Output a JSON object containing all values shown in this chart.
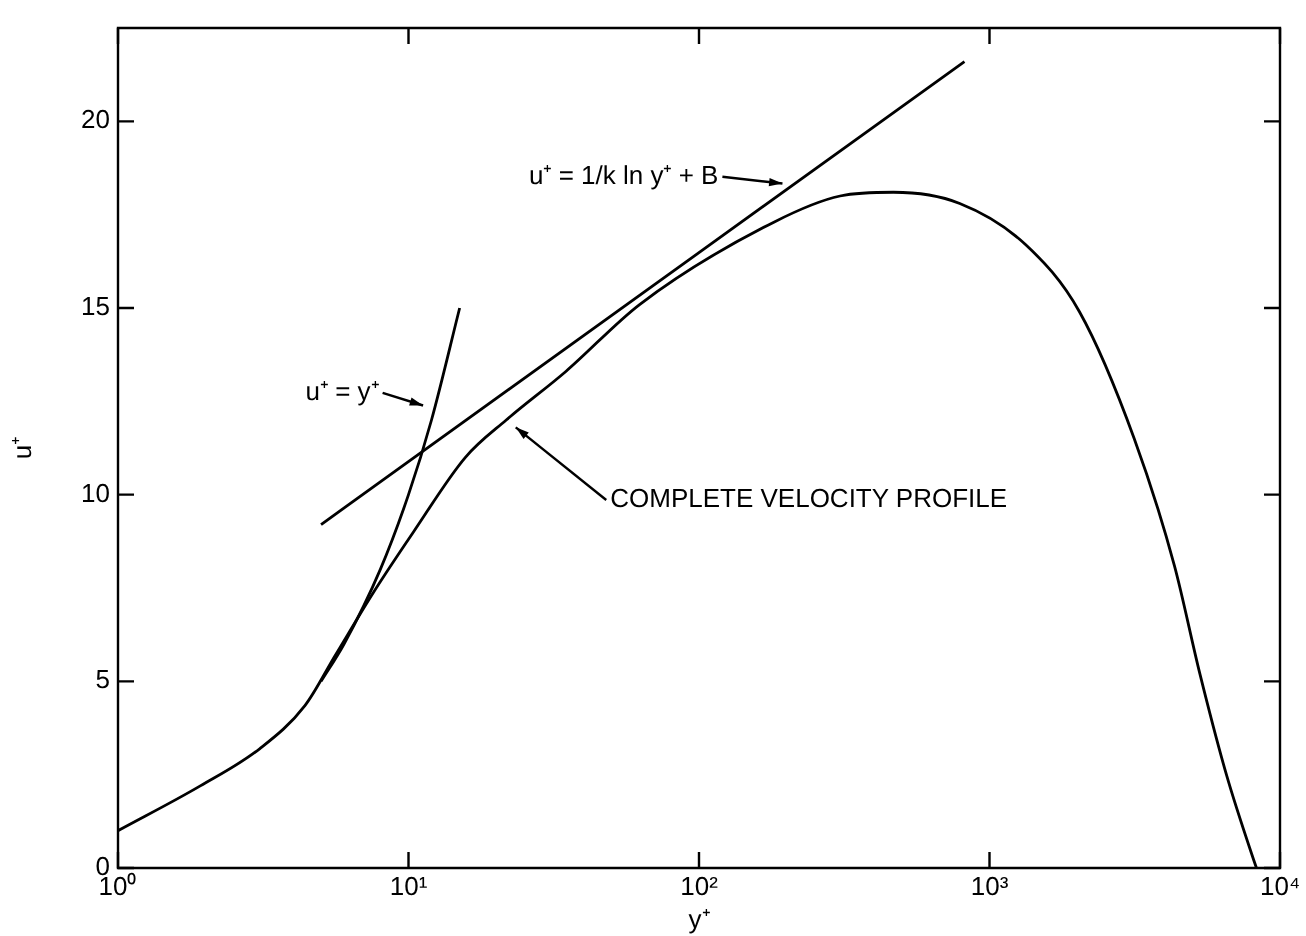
{
  "chart_data": {
    "type": "line",
    "xlabel": "y⁺",
    "ylabel": "u⁺",
    "log": "x",
    "grid": false,
    "legend": false,
    "marker": "none",
    "line_style": "solid",
    "xlim": [
      1,
      10000
    ],
    "xticks": [
      {
        "value": 1,
        "label": "10⁰"
      },
      {
        "value": 10,
        "label": "10¹"
      },
      {
        "value": 100,
        "label": "10²"
      },
      {
        "value": 1000,
        "label": "10³"
      },
      {
        "value": 10000,
        "label": "10⁴"
      }
    ],
    "ylim": [
      0,
      22.5
    ],
    "yticks": [
      0,
      5,
      10,
      15,
      20
    ],
    "series": [
      {
        "color": "#000000",
        "x": [
          1,
          1.92,
          3.08,
          4.4,
          5.6,
          7.6,
          10.4,
          15.7,
          21.7,
          34.8,
          62.6,
          181,
          306,
          467,
          790,
          1330,
          2040,
          3150,
          4330,
          5300,
          6540,
          8130,
          8300
        ],
        "values": [
          1,
          2.2,
          3.2,
          4.35,
          5.7,
          7.4,
          9,
          11,
          12,
          13.3,
          15.1,
          17.3,
          18,
          18.1,
          17.8,
          16.7,
          14.9,
          11.5,
          8.1,
          5.2,
          2.5,
          0.2,
          0
        ]
      },
      {
        "color": "#000000",
        "x": [
          5,
          6,
          8,
          10,
          12,
          15
        ],
        "values": [
          5,
          6,
          8,
          10,
          12,
          15
        ]
      },
      {
        "color": "#000000",
        "x": [
          5,
          820
        ],
        "values": [
          9.2,
          21.6
        ]
      }
    ],
    "annotations": [
      {
        "text": "u⁺ = y⁺",
        "x": 12.3,
        "y": 12.3
      },
      {
        "text": "u⁺ = 1/k ln y⁺ + B",
        "x": 213,
        "y": 18.3
      },
      {
        "text": "COMPLETE VELOCITY PROFILE",
        "x": 21.7,
        "y": 12
      }
    ]
  }
}
